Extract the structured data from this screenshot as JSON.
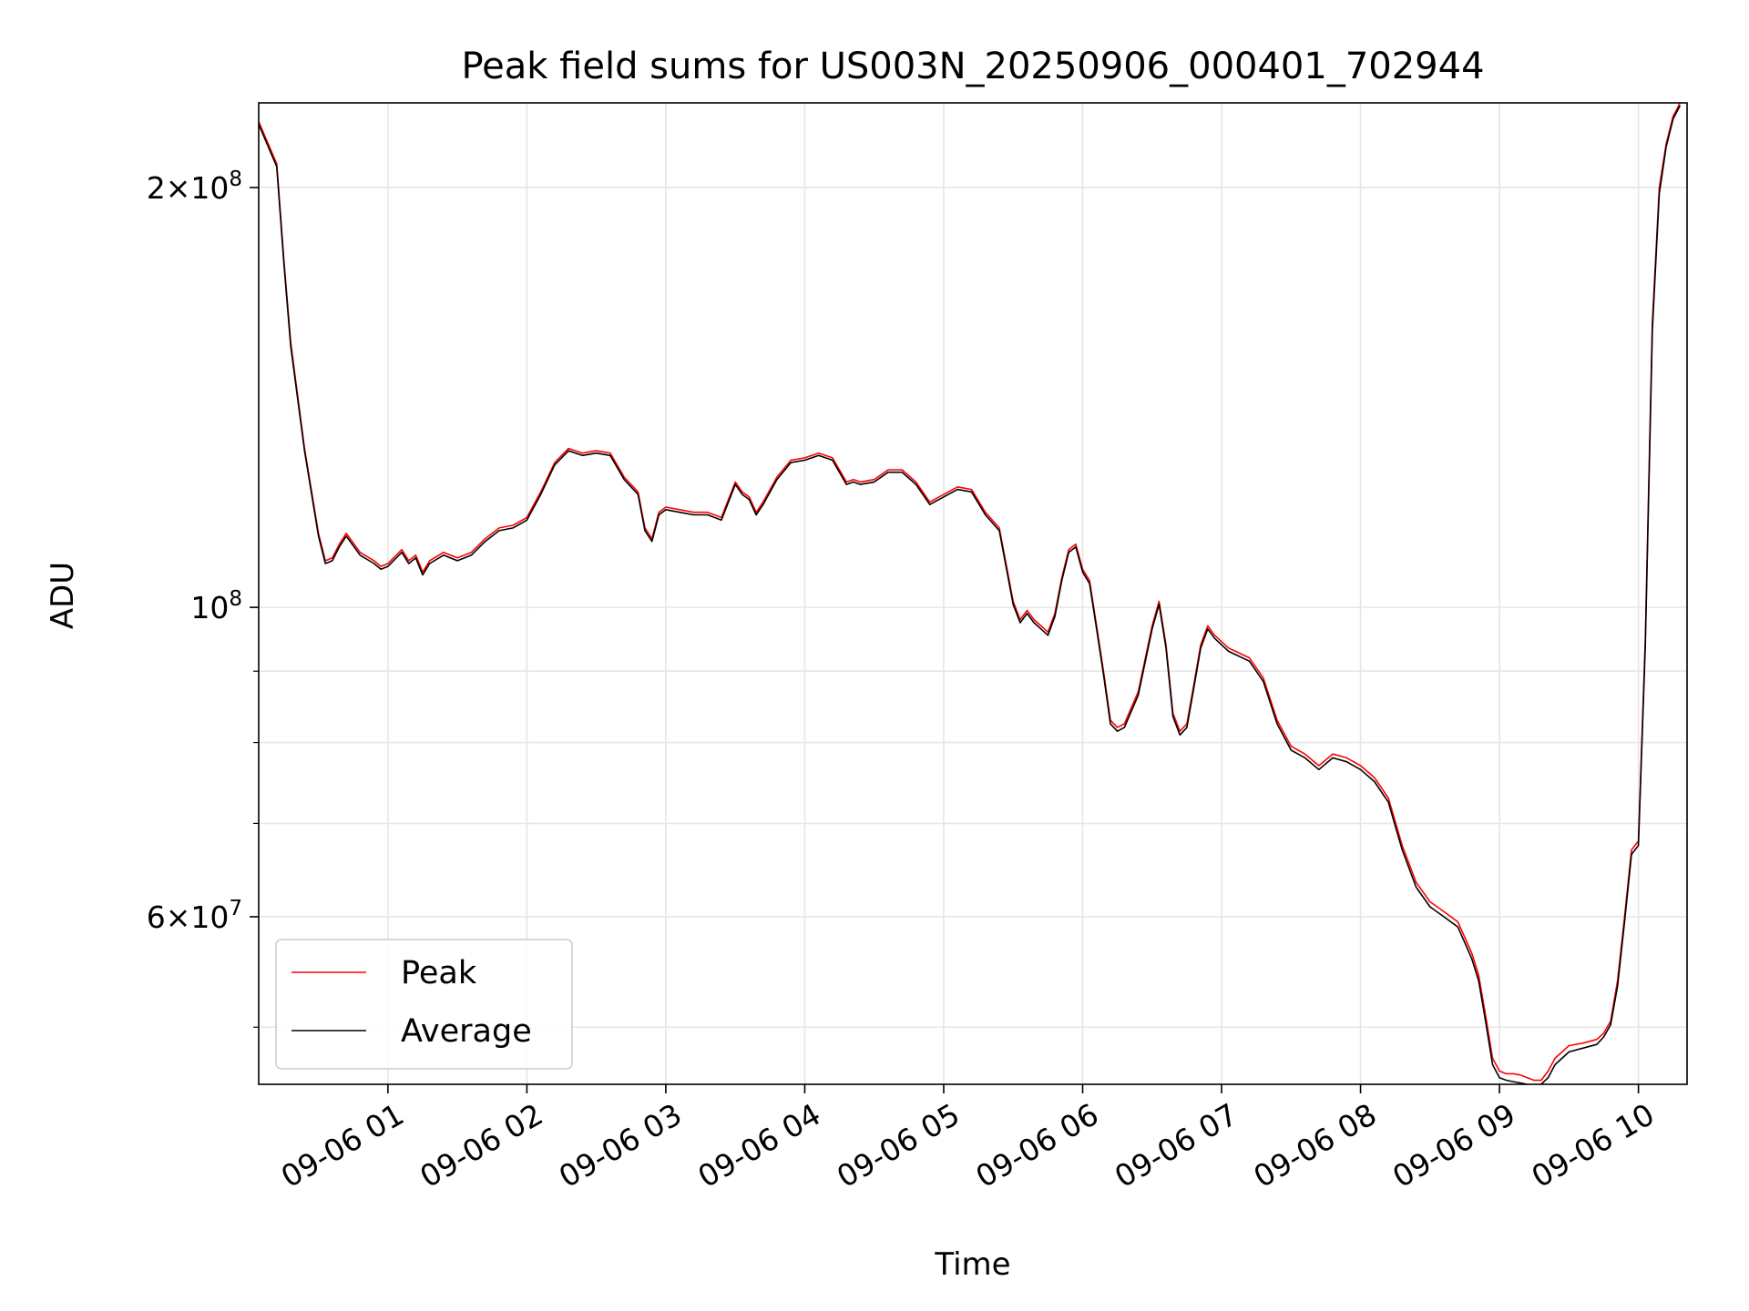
{
  "chart_data": {
    "type": "line",
    "title": "Peak field sums for US003N_20250906_000401_702944",
    "xlabel": "Time",
    "ylabel": "ADU",
    "yscale": "log",
    "grid": true,
    "legend_position": "lower-left",
    "x_unit": "hours since 09-06 00:00",
    "xlim": [
      0.07,
      10.35
    ],
    "ylim": [
      45500000,
      230000000
    ],
    "x_ticks": [
      {
        "value": 1,
        "label": "09-06 01"
      },
      {
        "value": 2,
        "label": "09-06 02"
      },
      {
        "value": 3,
        "label": "09-06 03"
      },
      {
        "value": 4,
        "label": "09-06 04"
      },
      {
        "value": 5,
        "label": "09-06 05"
      },
      {
        "value": 6,
        "label": "09-06 06"
      },
      {
        "value": 7,
        "label": "09-06 07"
      },
      {
        "value": 8,
        "label": "09-06 08"
      },
      {
        "value": 9,
        "label": "09-06 09"
      },
      {
        "value": 10,
        "label": "09-06 10"
      }
    ],
    "y_major_ticks": [
      {
        "value": 200000000,
        "mantissa": "2",
        "exponent": "8"
      },
      {
        "value": 100000000,
        "mantissa": "",
        "exponent": "8"
      },
      {
        "value": 60000000,
        "mantissa": "6",
        "exponent": "7"
      }
    ],
    "y_minor_ticks": [
      50000000,
      70000000,
      80000000,
      90000000
    ],
    "series": [
      {
        "name": "Peak",
        "color": "#ff0000",
        "x": [
          0.07,
          0.2,
          0.25,
          0.3,
          0.4,
          0.5,
          0.55,
          0.6,
          0.65,
          0.7,
          0.8,
          0.9,
          0.95,
          1.0,
          1.1,
          1.15,
          1.2,
          1.25,
          1.3,
          1.4,
          1.5,
          1.6,
          1.7,
          1.8,
          1.9,
          2.0,
          2.1,
          2.2,
          2.3,
          2.4,
          2.5,
          2.6,
          2.7,
          2.8,
          2.85,
          2.9,
          2.95,
          3.0,
          3.1,
          3.2,
          3.3,
          3.4,
          3.5,
          3.55,
          3.6,
          3.65,
          3.7,
          3.8,
          3.9,
          4.0,
          4.1,
          4.2,
          4.3,
          4.35,
          4.4,
          4.5,
          4.6,
          4.7,
          4.8,
          4.9,
          5.0,
          5.1,
          5.2,
          5.3,
          5.4,
          5.5,
          5.55,
          5.6,
          5.65,
          5.7,
          5.75,
          5.8,
          5.85,
          5.9,
          5.95,
          6.0,
          6.05,
          6.1,
          6.15,
          6.2,
          6.25,
          6.3,
          6.4,
          6.5,
          6.55,
          6.6,
          6.65,
          6.7,
          6.75,
          6.8,
          6.85,
          6.9,
          6.95,
          7.0,
          7.05,
          7.1,
          7.2,
          7.3,
          7.4,
          7.5,
          7.6,
          7.7,
          7.8,
          7.9,
          8.0,
          8.1,
          8.2,
          8.3,
          8.4,
          8.5,
          8.6,
          8.7,
          8.75,
          8.8,
          8.85,
          8.9,
          8.95,
          9.0,
          9.05,
          9.1,
          9.15,
          9.2,
          9.25,
          9.3,
          9.35,
          9.4,
          9.5,
          9.6,
          9.7,
          9.75,
          9.8,
          9.85,
          9.9,
          9.95,
          10.0,
          10.05,
          10.1,
          10.15,
          10.2,
          10.25,
          10.3
        ],
        "y": [
          223000000,
          208000000,
          178000000,
          155000000,
          130000000,
          113000000,
          108000000,
          108500000,
          111000000,
          113000000,
          109500000,
          108000000,
          107000000,
          107500000,
          110000000,
          108000000,
          109000000,
          106000000,
          108000000,
          109500000,
          108500000,
          109500000,
          112000000,
          114000000,
          114500000,
          116000000,
          121000000,
          127000000,
          130000000,
          129000000,
          129500000,
          129000000,
          124000000,
          121000000,
          114000000,
          112000000,
          117000000,
          118000000,
          117500000,
          117000000,
          117000000,
          116000000,
          123000000,
          121000000,
          120000000,
          117000000,
          119000000,
          124000000,
          127500000,
          128000000,
          129000000,
          128000000,
          123000000,
          123500000,
          123000000,
          123500000,
          125500000,
          125500000,
          123000000,
          119000000,
          120500000,
          122000000,
          121500000,
          117000000,
          114000000,
          101000000,
          98000000,
          99500000,
          98000000,
          97000000,
          96000000,
          99000000,
          105000000,
          110000000,
          111000000,
          106500000,
          104500000,
          97000000,
          90000000,
          83000000,
          82000000,
          82500000,
          87000000,
          97000000,
          101000000,
          94000000,
          84000000,
          81500000,
          82500000,
          88000000,
          94000000,
          97000000,
          95500000,
          94500000,
          93500000,
          93000000,
          92000000,
          89000000,
          83000000,
          79500000,
          78500000,
          77000000,
          78500000,
          78000000,
          77000000,
          75500000,
          73000000,
          67500000,
          63500000,
          61500000,
          60500000,
          59500000,
          58000000,
          56500000,
          54500000,
          51000000,
          47500000,
          46500000,
          46300000,
          46300000,
          46200000,
          46000000,
          45800000,
          45800000,
          46500000,
          47500000,
          48500000,
          48700000,
          49000000,
          49500000,
          50500000,
          54000000,
          60000000,
          67000000,
          68000000,
          95000000,
          160000000,
          200000000,
          215000000,
          225000000,
          230000000
        ]
      },
      {
        "name": "Average",
        "color": "#000000",
        "x": [
          0.07,
          0.2,
          0.25,
          0.3,
          0.4,
          0.5,
          0.55,
          0.6,
          0.65,
          0.7,
          0.8,
          0.9,
          0.95,
          1.0,
          1.1,
          1.15,
          1.2,
          1.25,
          1.3,
          1.4,
          1.5,
          1.6,
          1.7,
          1.8,
          1.9,
          2.0,
          2.1,
          2.2,
          2.3,
          2.4,
          2.5,
          2.6,
          2.7,
          2.8,
          2.85,
          2.9,
          2.95,
          3.0,
          3.1,
          3.2,
          3.3,
          3.4,
          3.5,
          3.55,
          3.6,
          3.65,
          3.7,
          3.8,
          3.9,
          4.0,
          4.1,
          4.2,
          4.3,
          4.35,
          4.4,
          4.5,
          4.6,
          4.7,
          4.8,
          4.9,
          5.0,
          5.1,
          5.2,
          5.3,
          5.4,
          5.5,
          5.55,
          5.6,
          5.65,
          5.7,
          5.75,
          5.8,
          5.85,
          5.9,
          5.95,
          6.0,
          6.05,
          6.1,
          6.15,
          6.2,
          6.25,
          6.3,
          6.4,
          6.5,
          6.55,
          6.6,
          6.65,
          6.7,
          6.75,
          6.8,
          6.85,
          6.9,
          6.95,
          7.0,
          7.05,
          7.1,
          7.2,
          7.3,
          7.4,
          7.5,
          7.6,
          7.7,
          7.8,
          7.9,
          8.0,
          8.1,
          8.2,
          8.3,
          8.4,
          8.5,
          8.6,
          8.7,
          8.75,
          8.8,
          8.85,
          8.9,
          8.95,
          9.0,
          9.05,
          9.1,
          9.15,
          9.2,
          9.25,
          9.3,
          9.35,
          9.4,
          9.5,
          9.6,
          9.7,
          9.75,
          9.8,
          9.85,
          9.9,
          9.95,
          10.0,
          10.05,
          10.1,
          10.15,
          10.2,
          10.25,
          10.3
        ],
        "y": [
          222000000,
          207000000,
          177000000,
          154000000,
          129500000,
          112500000,
          107500000,
          108000000,
          110500000,
          112500000,
          109000000,
          107500000,
          106500000,
          107000000,
          109500000,
          107500000,
          108500000,
          105500000,
          107500000,
          109000000,
          108000000,
          109000000,
          111500000,
          113500000,
          114000000,
          115500000,
          120500000,
          126500000,
          129500000,
          128500000,
          129000000,
          128500000,
          123500000,
          120500000,
          113500000,
          111500000,
          116500000,
          117500000,
          117000000,
          116500000,
          116500000,
          115500000,
          122500000,
          120500000,
          119500000,
          116500000,
          118500000,
          123500000,
          127000000,
          127500000,
          128500000,
          127500000,
          122500000,
          123000000,
          122500000,
          123000000,
          125000000,
          125000000,
          122500000,
          118500000,
          120000000,
          121500000,
          121000000,
          116500000,
          113500000,
          100500000,
          97500000,
          99000000,
          97500000,
          96500000,
          95500000,
          98500000,
          104500000,
          109500000,
          110500000,
          106000000,
          104000000,
          96500000,
          89500000,
          82500000,
          81500000,
          82000000,
          86500000,
          96500000,
          100500000,
          93500000,
          83500000,
          81000000,
          82000000,
          87500000,
          93500000,
          96500000,
          95000000,
          94000000,
          93000000,
          92500000,
          91500000,
          88500000,
          82500000,
          79000000,
          78000000,
          76500000,
          78000000,
          77500000,
          76500000,
          75000000,
          72500000,
          67000000,
          63000000,
          61000000,
          60000000,
          59000000,
          57500000,
          56000000,
          54000000,
          50500000,
          47000000,
          46000000,
          45800000,
          45700000,
          45600000,
          45500000,
          45400000,
          45500000,
          46000000,
          47000000,
          48000000,
          48300000,
          48600000,
          49200000,
          50200000,
          53500000,
          59500000,
          66500000,
          67500000,
          94000000,
          158000000,
          198000000,
          214000000,
          224000000,
          229000000
        ]
      }
    ]
  }
}
